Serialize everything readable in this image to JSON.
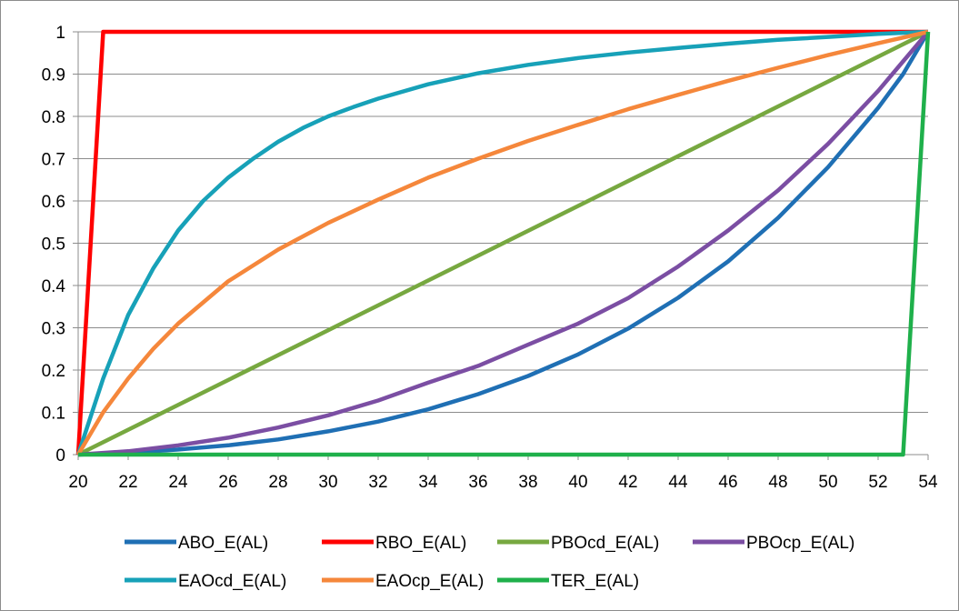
{
  "chart_data": {
    "type": "line",
    "title": "",
    "xlabel": "",
    "ylabel": "",
    "xlim": [
      20,
      54
    ],
    "ylim": [
      0,
      1
    ],
    "x_ticks": [
      20,
      22,
      24,
      26,
      28,
      30,
      32,
      34,
      36,
      38,
      40,
      42,
      44,
      46,
      48,
      50,
      52,
      54
    ],
    "y_ticks": [
      0,
      0.1,
      0.2,
      0.3,
      0.4,
      0.5,
      0.6,
      0.7,
      0.8,
      0.9,
      1
    ],
    "x_tick_labels": [
      "20",
      "22",
      "24",
      "26",
      "28",
      "30",
      "32",
      "34",
      "36",
      "38",
      "40",
      "42",
      "44",
      "46",
      "48",
      "50",
      "52",
      "54"
    ],
    "y_tick_labels": [
      "0",
      "0.1",
      "0.2",
      "0.3",
      "0.4",
      "0.5",
      "0.6",
      "0.7",
      "0.8",
      "0.9",
      "1"
    ],
    "grid": "horizontal",
    "legend_position": "bottom",
    "series": [
      {
        "name": "ABO_E(AL)",
        "color": "#1f6fb4",
        "x": [
          20,
          22,
          24,
          26,
          28,
          30,
          32,
          34,
          36,
          38,
          40,
          42,
          44,
          46,
          48,
          50,
          52,
          53,
          54
        ],
        "y": [
          0,
          0.004,
          0.012,
          0.022,
          0.036,
          0.055,
          0.078,
          0.107,
          0.143,
          0.186,
          0.237,
          0.298,
          0.371,
          0.457,
          0.56,
          0.68,
          0.82,
          0.9,
          1
        ]
      },
      {
        "name": "RBO_E(AL)",
        "color": "#ff0000",
        "x": [
          20,
          21,
          54
        ],
        "y": [
          0,
          1,
          1
        ]
      },
      {
        "name": "PBOcd_E(AL)",
        "color": "#77a840",
        "x": [
          20,
          54
        ],
        "y": [
          0,
          1
        ]
      },
      {
        "name": "PBOcp_E(AL)",
        "color": "#7b4ea3",
        "x": [
          20,
          22,
          24,
          26,
          28,
          30,
          32,
          34,
          36,
          38,
          40,
          42,
          44,
          46,
          48,
          50,
          52,
          53,
          54
        ],
        "y": [
          0,
          0.008,
          0.022,
          0.04,
          0.064,
          0.093,
          0.128,
          0.17,
          0.21,
          0.26,
          0.31,
          0.37,
          0.445,
          0.53,
          0.625,
          0.735,
          0.86,
          0.93,
          1
        ]
      },
      {
        "name": "EAOcd_E(AL)",
        "color": "#17a1b8",
        "x": [
          20,
          21,
          22,
          23,
          24,
          25,
          26,
          27,
          28,
          29,
          30,
          31,
          32,
          34,
          36,
          38,
          40,
          42,
          44,
          46,
          48,
          50,
          52,
          54
        ],
        "y": [
          0,
          0.18,
          0.33,
          0.44,
          0.53,
          0.6,
          0.655,
          0.7,
          0.74,
          0.773,
          0.8,
          0.822,
          0.842,
          0.876,
          0.902,
          0.922,
          0.938,
          0.951,
          0.962,
          0.972,
          0.981,
          0.988,
          0.995,
          1
        ]
      },
      {
        "name": "EAOcp_E(AL)",
        "color": "#f5873b",
        "x": [
          20,
          21,
          22,
          23,
          24,
          25,
          26,
          28,
          30,
          32,
          34,
          36,
          38,
          40,
          42,
          44,
          46,
          48,
          50,
          52,
          54
        ],
        "y": [
          0,
          0.1,
          0.18,
          0.25,
          0.31,
          0.36,
          0.41,
          0.485,
          0.548,
          0.603,
          0.655,
          0.7,
          0.742,
          0.78,
          0.817,
          0.851,
          0.884,
          0.915,
          0.945,
          0.973,
          1
        ]
      },
      {
        "name": "TER_E(AL)",
        "color": "#1fb04b",
        "x": [
          20,
          53,
          54
        ],
        "y": [
          0,
          0,
          1
        ]
      }
    ]
  }
}
